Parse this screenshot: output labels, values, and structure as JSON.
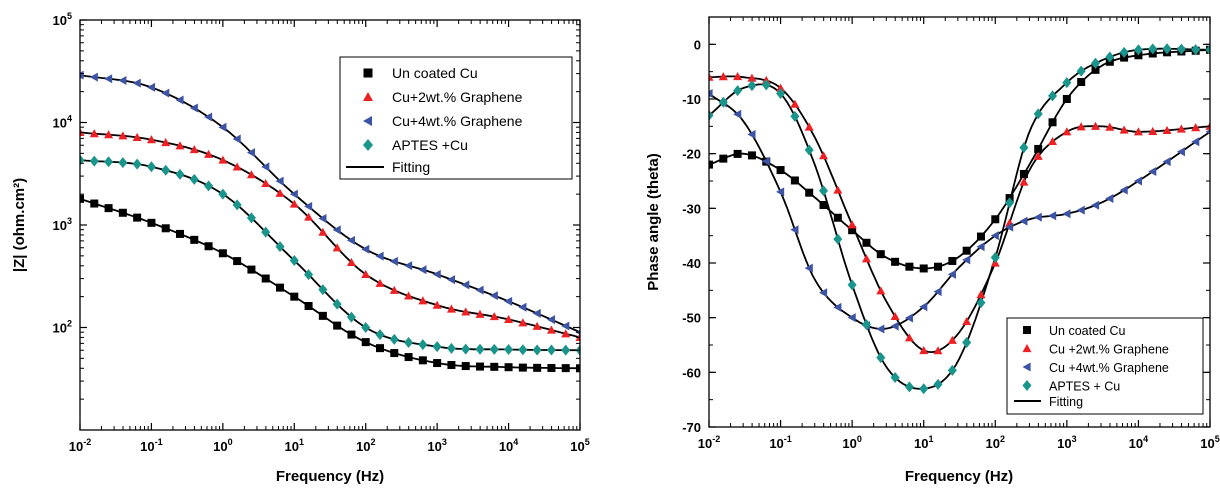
{
  "chart_data": [
    {
      "type": "scatter",
      "xlabel": "Frequency (Hz)",
      "ylabel": "|Z| (ohm.cm²)",
      "x_scale": "log",
      "y_scale": "log",
      "xlim": [
        0.01,
        100000
      ],
      "ylim": [
        10,
        100000
      ],
      "x_ticks": [
        0.01,
        0.1,
        1,
        10,
        100,
        1000,
        10000,
        100000
      ],
      "x_tick_labels": [
        [
          "10",
          "-2"
        ],
        [
          "10",
          "-1"
        ],
        [
          "10",
          "0"
        ],
        [
          "10",
          "1"
        ],
        [
          "10",
          "2"
        ],
        [
          "10",
          "3"
        ],
        [
          "10",
          "4"
        ],
        [
          "10",
          "5"
        ]
      ],
      "y_ticks": [
        100,
        1000,
        10000,
        100000
      ],
      "y_tick_labels": [
        [
          "10",
          "2"
        ],
        [
          "10",
          "3"
        ],
        [
          "10",
          "4"
        ],
        [
          "10",
          "5"
        ]
      ],
      "legend_position": "top-right",
      "series": [
        {
          "name": "Un coated Cu",
          "marker": "square",
          "color": "#000000",
          "x": [
            0.01,
            0.1,
            1,
            10,
            100,
            1000,
            10000,
            100000
          ],
          "y": [
            1800,
            1050,
            530,
            200,
            72,
            45,
            41,
            40
          ]
        },
        {
          "name": "Cu+2wt.% Graphene",
          "marker": "triangle-up",
          "color": "#ed2024",
          "x": [
            0.01,
            0.1,
            1,
            10,
            100,
            1000,
            10000,
            100000
          ],
          "y": [
            8000,
            6800,
            4300,
            1600,
            330,
            165,
            120,
            80
          ]
        },
        {
          "name": "Cu+4wt.% Graphene",
          "marker": "triangle-left",
          "color": "#3d53a4",
          "x": [
            0.01,
            0.1,
            1,
            10,
            100,
            1000,
            10000,
            100000
          ],
          "y": [
            29000,
            22000,
            9000,
            2000,
            580,
            330,
            180,
            90
          ]
        },
        {
          "name": "APTES +Cu",
          "marker": "diamond",
          "color": "#1a958c",
          "x": [
            0.01,
            0.1,
            1,
            10,
            100,
            1000,
            10000,
            100000
          ],
          "y": [
            4300,
            3700,
            2000,
            450,
            100,
            65,
            61,
            60
          ]
        }
      ],
      "fit_label": "Fitting"
    },
    {
      "type": "scatter",
      "xlabel": "Frequency (Hz)",
      "ylabel": "Phase angle (theta)",
      "x_scale": "log",
      "y_scale": "linear",
      "xlim": [
        0.01,
        100000
      ],
      "ylim": [
        -70,
        5
      ],
      "x_ticks": [
        0.01,
        0.1,
        1,
        10,
        100,
        1000,
        10000,
        100000
      ],
      "x_tick_labels": [
        [
          "10",
          "-2"
        ],
        [
          "10",
          "-1"
        ],
        [
          "10",
          "0"
        ],
        [
          "10",
          "1"
        ],
        [
          "10",
          "2"
        ],
        [
          "10",
          "3"
        ],
        [
          "10",
          "4"
        ],
        [
          "10",
          "5"
        ]
      ],
      "y_ticks": [
        0,
        -10,
        -20,
        -30,
        -40,
        -50,
        -60,
        -70
      ],
      "y_tick_labels": [
        "0",
        "-10",
        "-20",
        "-30",
        "-40",
        "-50",
        "-60",
        "-70"
      ],
      "legend_position": "bottom-right",
      "series": [
        {
          "name": "Un coated Cu",
          "marker": "square",
          "color": "#000000",
          "x": [
            0.01,
            0.03,
            0.1,
            0.3,
            1,
            3,
            10,
            30,
            100,
            300,
            1000,
            3000,
            10000,
            100000
          ],
          "y": [
            -22,
            -20,
            -23,
            -28,
            -34,
            -39,
            -41,
            -39,
            -32,
            -22,
            -10,
            -4,
            -2,
            -1
          ]
        },
        {
          "name": "Cu +2wt.% Graphene",
          "marker": "triangle-up",
          "color": "#ed2024",
          "x": [
            0.01,
            0.03,
            0.1,
            0.3,
            1,
            3,
            10,
            30,
            100,
            300,
            1000,
            3000,
            10000,
            100000
          ],
          "y": [
            -6,
            -6,
            -8,
            -17,
            -33,
            -47,
            -56,
            -53,
            -40,
            -23,
            -16,
            -15,
            -16,
            -15
          ]
        },
        {
          "name": "Cu +4wt.% Graphene",
          "marker": "triangle-left",
          "color": "#3d53a4",
          "x": [
            0.01,
            0.03,
            0.1,
            0.3,
            1,
            3,
            10,
            30,
            100,
            300,
            1000,
            3000,
            10000,
            100000
          ],
          "y": [
            -9,
            -14,
            -27,
            -43,
            -50,
            -52,
            -48,
            -41,
            -35,
            -32,
            -31,
            -29,
            -25,
            -16
          ]
        },
        {
          "name": "APTES + Cu",
          "marker": "diamond",
          "color": "#1a958c",
          "x": [
            0.01,
            0.03,
            0.1,
            0.3,
            1,
            3,
            10,
            30,
            100,
            300,
            1000,
            3000,
            10000,
            100000
          ],
          "y": [
            -13,
            -8,
            -9,
            -22,
            -44,
            -59,
            -63,
            -58,
            -39,
            -16,
            -7,
            -3,
            -1,
            -1
          ]
        }
      ],
      "fit_label": "Fitting"
    }
  ]
}
